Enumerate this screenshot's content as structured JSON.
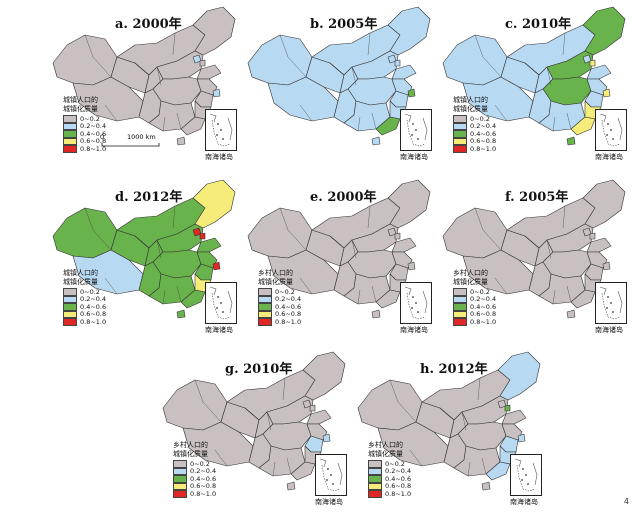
{
  "legend_colors": [
    "#c9c1c1",
    "#b7d9f2",
    "#69b34c",
    "#f5ec7a",
    "#e02727"
  ],
  "legend_classes": [
    "0~0.2",
    "0.2~0.4",
    "0.4~0.6",
    "0.6~0.8",
    "0.8~1.0"
  ],
  "legend_title_urban": [
    "城镇人口的",
    "城镇化质量"
  ],
  "legend_title_rural": [
    "乡村人口的",
    "城镇化质量"
  ],
  "inset_label": "南海诸岛",
  "scale": {
    "zero": "0",
    "label": "1000 km"
  },
  "page_number": "4",
  "panels": [
    {
      "id": "a",
      "title": "a. 2000年",
      "legend": "urban",
      "base": 0,
      "hl": {
        "sh": 1,
        "bj": 1,
        "tw": 1
      }
    },
    {
      "id": "b",
      "title": "b. 2005年",
      "legend": "none",
      "base": 1,
      "hl": {
        "sh": 2,
        "gd": 2,
        "tw": 2
      }
    },
    {
      "id": "c",
      "title": "c. 2010年",
      "legend": "urban",
      "base": 1,
      "hl": {
        "ne": 2,
        "north": 2,
        "central": 2,
        "sh": 3,
        "fj": 3,
        "gd": 3,
        "tj": 3,
        "hn": 2
      }
    },
    {
      "id": "d",
      "title": "d. 2012年",
      "legend": "urban",
      "base": 2,
      "hl": {
        "xz": 1,
        "ne": 3,
        "fj": 3,
        "sh": 4,
        "bj": 4,
        "tj": 4,
        "hn": 2
      }
    },
    {
      "id": "e",
      "title": "e. 2000年",
      "legend": "rural",
      "base": 0,
      "hl": {}
    },
    {
      "id": "f",
      "title": "f. 2005年",
      "legend": "rural",
      "base": 0,
      "hl": {}
    },
    {
      "id": "g",
      "title": "g. 2010年",
      "legend": "rural",
      "base": 0,
      "hl": {
        "sh": 1,
        "zj": 1
      }
    },
    {
      "id": "h",
      "title": "h. 2012年",
      "legend": "rural",
      "base": 0,
      "hl": {
        "ne": 1,
        "sh": 1,
        "zj": 1,
        "fj": 1,
        "tj": 2,
        "gd": 1
      }
    }
  ]
}
